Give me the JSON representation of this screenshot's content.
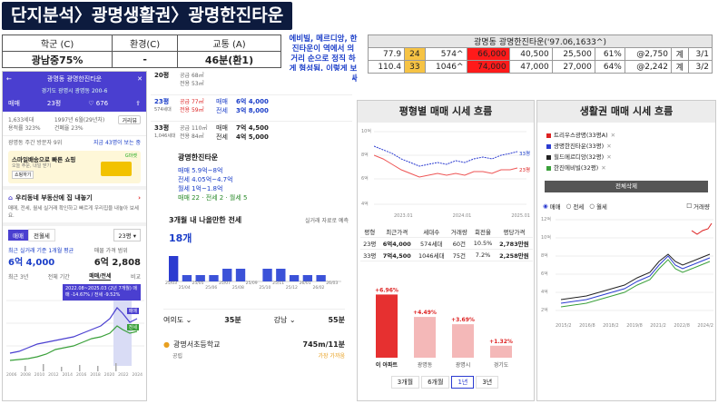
{
  "title": "단지분석〉광명생활권〉광명한진타운",
  "summary": {
    "headers": [
      "학군 (C)",
      "환경(C)",
      "교통 (A)"
    ],
    "values": [
      "광남중75%",
      "-",
      "46분(환1)"
    ]
  },
  "note": "에비빌, 메르디앙, 한진타운이 역에서 의 거리 순으로 정직 하게 형성됨. 이렇게 보니 에비빌 20평이 싸보임.",
  "price_table": {
    "header": "광명동 광명한진타운('97.06,1633^)",
    "rows": [
      [
        "77.9",
        "24",
        "574^",
        "66,000",
        "40,500",
        "25,500",
        "61%",
        "@2,750",
        "계",
        "3/1"
      ],
      [
        "110.4",
        "33",
        "1046^",
        "74,000",
        "47,000",
        "27,000",
        "64%",
        "@2,242",
        "계",
        "3/2"
      ]
    ]
  },
  "phone": {
    "header_title": "광명동 광명한진타운",
    "address": "경기도 광명시 광명동 200-6",
    "trade": "매매",
    "size": "23평",
    "likes": "676",
    "info1": "1,633세대",
    "info2": "1997년 6월(29년차)",
    "info3": "용적률 323%",
    "info4": "건폐율 23%",
    "review_btn": "거리뷰",
    "price_note": "광명동 주간 방문자 9위",
    "talk": "지금 43명이 보는 중",
    "delivery_title": "스마일배송으로 빠른 쇼핑",
    "delivery_sub": "오늘 주문, 내일 받기",
    "delivery_btn": "쇼핑하기",
    "delivery_brand": "G마켓",
    "news_title": "우리동네 부동산에 집 내놓기",
    "news_sub": "매매, 전세, 월세 실거래 확인하고 빠르게 우리집을 내놓아 보세요.",
    "tab_sale": "매매",
    "tab_rent": "전월세",
    "size_sel": "23평 ▾",
    "recent_label": "최근 실거래 기준 1개월 평균",
    "recent_price": "6억 4,000",
    "recent_label2": "매물 가격 범위",
    "recent_price2": "6억 2,808",
    "chart_tabs": [
      "최근 3년",
      "전체 기간",
      "매매/전세",
      "비교"
    ],
    "tooltip": "2022.08~2025.03 (2년 7개월) 매매 -14.67% / 전세 -9.52%",
    "chart_label1": "매매",
    "chart_label2": "전세",
    "x_years": [
      "2006",
      "2008",
      "2010",
      "2012",
      "2014",
      "2016",
      "2018",
      "2020",
      "2022",
      "2024"
    ]
  },
  "mid": {
    "units": [
      {
        "py": "20평",
        "a": "공급 68㎡",
        "b": "전용 53㎡",
        "t1": "",
        "p1": "",
        "t2": "",
        "p2": ""
      },
      {
        "py": "23평",
        "a": "공급 77㎡",
        "b": "전용 59㎡",
        "t1": "매매",
        "p1": "6억 4,000",
        "t2": "전세",
        "p2": "3억 8,000",
        "hl": true,
        "cnt": "574세대"
      },
      {
        "py": "33평",
        "a": "공급 110㎡",
        "b": "전용 84㎡",
        "t1": "매매",
        "p1": "7억 4,500",
        "t2": "전세",
        "p2": "4억 5,000",
        "cnt": "1,046세대"
      }
    ],
    "complex_name": "광명한진타운",
    "l1": "매매 5.9억~8억",
    "l2": "전세 4.05억~4.7억",
    "l3": "월세 1억~1.8억",
    "counts": "매매 22 · 전세 2 · 월세 5",
    "rent_title": "3개월 내 나올만한 전세",
    "rent_right": "실거래 자료로 예측",
    "rent_count": "18개",
    "bar_labels": [
      "25/03",
      "25/04",
      "25/05",
      "25/06",
      "25/07",
      "25/08",
      "25/09",
      "25/10",
      "25/11",
      "25/12",
      "26/01",
      "26/02",
      "26/03"
    ],
    "dist1": "여의도 ⌄",
    "dist1v": "35분",
    "dist2": "강남 ⌄",
    "dist2v": "55분",
    "school": "광명서초등학교",
    "school_type": "공립",
    "school_dist": "745m/11분",
    "school_note": "가장 가까움"
  },
  "chart_data": [
    {
      "type": "bar",
      "title": "3개월 내 나올만한 전세",
      "categories": [
        "25/03",
        "25/04",
        "25/05",
        "25/06",
        "25/07",
        "25/08",
        "25/09",
        "25/10",
        "25/11",
        "25/12",
        "26/01",
        "26/02",
        "26/03"
      ],
      "values": [
        4,
        1,
        1,
        1,
        2,
        2,
        0,
        2,
        2,
        1,
        1,
        1,
        0
      ]
    },
    {
      "type": "line",
      "title": "평형별 매매 시세 흐름",
      "x": [
        "2023.01",
        "2024.01",
        "2025.01"
      ],
      "yticks": [
        "10억",
        "8억",
        "6억",
        "4억"
      ],
      "series": [
        {
          "name": "33평",
          "end": 7.4
        },
        {
          "name": "23평",
          "end": 6.4
        }
      ]
    },
    {
      "type": "bar",
      "title": "가격 변동률",
      "categories": [
        "이 아파트",
        "광명동",
        "광명시",
        "경기도"
      ],
      "values": [
        6.96,
        4.49,
        3.69,
        1.32
      ]
    },
    {
      "type": "line",
      "title": "생활권 매매 시세 흐름",
      "x": [
        "2015/2",
        "2016/8",
        "2018/2",
        "2019/8",
        "2021/2",
        "2022/8",
        "2024/2"
      ],
      "yticks": [
        "12억",
        "10억",
        "8억",
        "6억",
        "4억",
        "2억"
      ],
      "series": [
        {
          "name": "트리우스광명(33평A)",
          "color": "#d22"
        },
        {
          "name": "광명한진타운(33평)",
          "color": "#2b3bd0"
        },
        {
          "name": "힐드메르디앙(32평)",
          "color": "#222"
        },
        {
          "name": "한진에비빌(32평)",
          "color": "#3aa03a"
        }
      ]
    }
  ],
  "rp1": {
    "title": "평형별 매매 시세 흐름",
    "x_labels": [
      "2023.01",
      "2024.01",
      "2025.01"
    ],
    "y_labels": [
      "10억",
      "8억",
      "6억",
      "4억"
    ],
    "s33": "33평",
    "s23": "23평",
    "table_head": [
      "평형",
      "최근가격",
      "세대수",
      "거래량",
      "회전율",
      "평당가격"
    ],
    "table_rows": [
      [
        "23평",
        "6억4,000",
        "574세대",
        "60건",
        "10.5%",
        "2,783만원"
      ],
      [
        "33평",
        "7억4,500",
        "1046세대",
        "75건",
        "7.2%",
        "2,258만원"
      ]
    ],
    "pct": [
      "+6.96%",
      "+4.49%",
      "+3.69%",
      "+1.32%"
    ],
    "cats": [
      "이 아파트",
      "광명동",
      "광명시",
      "경기도"
    ],
    "periods": [
      "3개월",
      "6개월",
      "1년",
      "3년"
    ]
  },
  "rp2": {
    "title": "생활권 매매 시세 흐름",
    "legend": [
      "트리우스광명(33평A)",
      "광명한진타운(33평)",
      "힐드메르디앙(32평)",
      "한진에비빌(32평)"
    ],
    "delete_btn": "전체삭제",
    "radio": [
      "매매",
      "전세",
      "월세"
    ],
    "check": "거래량",
    "y_labels": [
      "12억",
      "10억",
      "8억",
      "6억",
      "4억",
      "2억"
    ],
    "x_labels": [
      "2015/2",
      "2016/8",
      "2018/2",
      "2019/8",
      "2021/2",
      "2022/8",
      "2024/2"
    ]
  }
}
